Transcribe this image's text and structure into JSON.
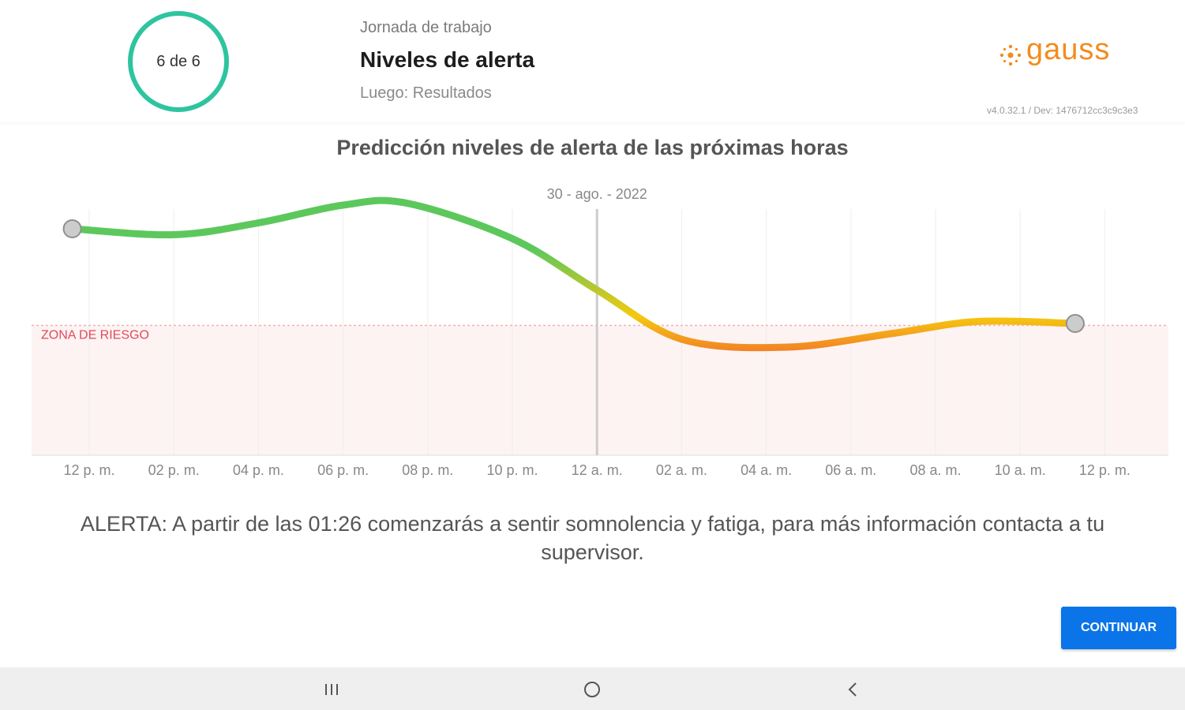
{
  "header": {
    "step": "6 de 6",
    "subtitle": "Jornada de trabajo",
    "title": "Niveles de alerta",
    "next": "Luego: Resultados",
    "brand": "gauss",
    "version": "v4.0.32.1 / Dev: 1476712cc3c9c3e3"
  },
  "chart_data": {
    "type": "line",
    "title": "Predicción niveles de alerta de las próximas horas",
    "date_marker": {
      "x": "12 a. m.",
      "label": "30 - ago. - 2022"
    },
    "risk_zone_label": "ZONA DE RIESGO",
    "x_ticks": [
      "12 p. m.",
      "02 p. m.",
      "04 p. m.",
      "06 p. m.",
      "08 p. m.",
      "10 p. m.",
      "12 a. m.",
      "02 a. m.",
      "04 a. m.",
      "06 a. m.",
      "08 a. m.",
      "10 a. m.",
      "12 p. m."
    ],
    "x_hours": [
      -0.4,
      2,
      4,
      6,
      7.5,
      10,
      12,
      14,
      16.5,
      19,
      21,
      23.3
    ],
    "alert_level": [
      0.74,
      0.71,
      0.77,
      0.86,
      0.87,
      0.69,
      0.43,
      0.18,
      0.14,
      0.21,
      0.27,
      0.26
    ],
    "risk_threshold": 0.25,
    "ylim": [
      0,
      1
    ],
    "grid": true,
    "colors": {
      "high": "#5cc85c",
      "mid": "#f5c90f",
      "low": "#ee2244"
    }
  },
  "alert": {
    "message": "ALERTA: A partir de las 01:26 comenzarás a sentir somnolencia y fatiga, para más información contacta a tu supervisor."
  },
  "actions": {
    "continue_label": "CONTINUAR"
  },
  "navbar": {
    "icons": [
      "recent-apps-icon",
      "home-icon",
      "back-icon"
    ]
  }
}
